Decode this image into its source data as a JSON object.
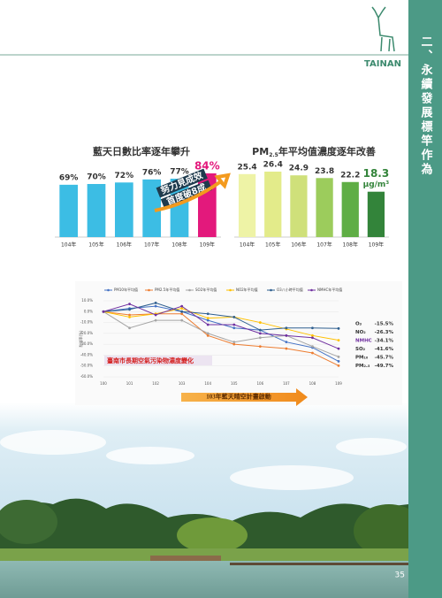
{
  "header": {
    "logo": "TAINAN"
  },
  "sidebar": {
    "title": "二、永續發展標竿作為"
  },
  "chart_data": [
    {
      "type": "bar",
      "title": "藍天日數比率逐年攀升",
      "categories": [
        "104年",
        "105年",
        "106年",
        "107年",
        "108年",
        "109年"
      ],
      "values": [
        69,
        70,
        72,
        76,
        77,
        84
      ],
      "value_labels": [
        "69%",
        "70%",
        "72%",
        "76%",
        "77%",
        "84%"
      ],
      "colors": [
        "#3cbde4",
        "#3cbde4",
        "#3cbde4",
        "#3cbde4",
        "#3cbde4",
        "#e3197c"
      ],
      "highlight": 5,
      "annotation": [
        "努力見成效",
        "首度破8成"
      ]
    },
    {
      "type": "bar",
      "title": {
        "main": "PM",
        "subscript": "2.5",
        "rest": "年平均值濃度逐年改善"
      },
      "categories": [
        "104年",
        "105年",
        "106年",
        "107年",
        "108年",
        "109年"
      ],
      "values": [
        25.4,
        26.4,
        24.9,
        23.8,
        22.2,
        18.3
      ],
      "colors": [
        "#eef3a6",
        "#e3eb8a",
        "#cfe07a",
        "#9ccc5c",
        "#5fae45",
        "#33843a"
      ],
      "highlight": 5,
      "unit": "μg/m³"
    },
    {
      "type": "line",
      "title": "臺南市長期空氣污染物濃度變化",
      "y_label": "削減率(%)",
      "categories": [
        "100",
        "101",
        "102",
        "103",
        "104",
        "105",
        "106",
        "107",
        "108",
        "109"
      ],
      "ylim": [
        -60,
        10
      ],
      "yticks": [
        {
          "value": 10,
          "label": "10.0%"
        },
        {
          "value": 0,
          "label": "0.0%"
        },
        {
          "value": -10,
          "label": "-10.0%"
        },
        {
          "value": -20,
          "label": "-20.0%"
        },
        {
          "value": -30,
          "label": "-30.0%"
        },
        {
          "value": -40,
          "label": "-40.0%"
        },
        {
          "value": -50,
          "label": "-50.0%"
        },
        {
          "value": -60,
          "label": "-60.0%"
        }
      ],
      "series": [
        {
          "name": "PM10年平均值",
          "color": "#4472c4",
          "values": [
            0,
            3,
            5,
            0,
            -8,
            -15,
            -17,
            -28,
            -33,
            -45.7
          ]
        },
        {
          "name": "PM2.5年平均值",
          "color": "#ed7d31",
          "values": [
            0,
            -3,
            -2,
            -2,
            -22,
            -30,
            -32,
            -34,
            -38,
            -49.7
          ]
        },
        {
          "name": "SO2年平均值",
          "color": "#a5a5a5",
          "values": [
            0,
            -15,
            -8,
            -8,
            -20,
            -28,
            -24,
            -22,
            -32,
            -41.6
          ]
        },
        {
          "name": "NO2年平均值",
          "color": "#ffc000",
          "values": [
            0,
            -5,
            -2,
            3,
            -6,
            -5,
            -10,
            -16,
            -22,
            -26.3
          ]
        },
        {
          "name": "O3八小時平均值",
          "color": "#2f5f8f",
          "values": [
            0,
            2,
            8,
            0,
            -2,
            -5,
            -17,
            -15,
            -15,
            -15.5
          ]
        },
        {
          "name": "NMHC年平均值",
          "color": "#7030a0",
          "values": [
            0,
            7,
            -3,
            5,
            -12,
            -12,
            -20,
            -22,
            -24,
            -34.1
          ]
        }
      ],
      "annotation": "103年藍天晴空計畫啟動",
      "summary": {
        "names": [
          "O₃",
          "NO₂",
          "NMHC",
          "SO₂",
          "PM₁₀",
          "PM₂.₅"
        ],
        "values": [
          -15.5,
          -26.3,
          -34.1,
          -41.6,
          -45.7,
          -49.7
        ],
        "value_labels": [
          "-15.5%",
          "-26.3%",
          "-34.1%",
          "-41.6%",
          "-45.7%",
          "-49.7%"
        ]
      }
    }
  ],
  "page_number": "35"
}
